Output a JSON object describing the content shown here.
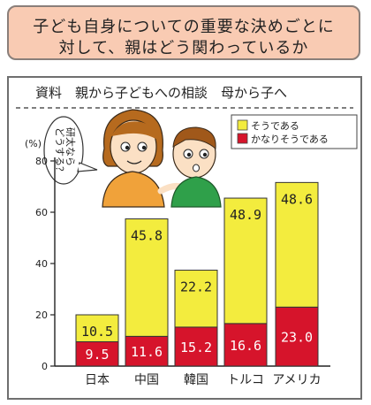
{
  "header": {
    "line1": "子ども自身についての重要な決めごとに",
    "line2": "対して、親はどう関わっているか"
  },
  "panel": {
    "caption": "資料　親から子どもへの相談　母から子へ",
    "speech_bubble": [
      "研太なら",
      "どうする？"
    ]
  },
  "chart_data": {
    "type": "bar",
    "stacked": true,
    "categories": [
      "日本",
      "中国",
      "韓国",
      "トルコ",
      "アメリカ"
    ],
    "series": [
      {
        "name": "かなりそうである",
        "color": "#d6142b",
        "values": [
          9.5,
          11.6,
          15.2,
          16.6,
          23.0
        ],
        "labels": [
          "9.5",
          "11.6",
          "15.2",
          "16.6",
          "23.0"
        ]
      },
      {
        "name": "そうである",
        "color": "#f3ec3e",
        "values": [
          10.5,
          45.8,
          22.2,
          48.9,
          48.6
        ],
        "labels": [
          "10.5",
          "45.8",
          "22.2",
          "48.9",
          "48.6"
        ]
      }
    ],
    "legend_order": [
      "そうである",
      "かなりそうである"
    ],
    "legend_position": "top-right",
    "ylabel": "(%)",
    "ylim": [
      0,
      80
    ],
    "yticks": [
      0,
      20,
      40,
      60,
      80
    ],
    "grid": false
  }
}
